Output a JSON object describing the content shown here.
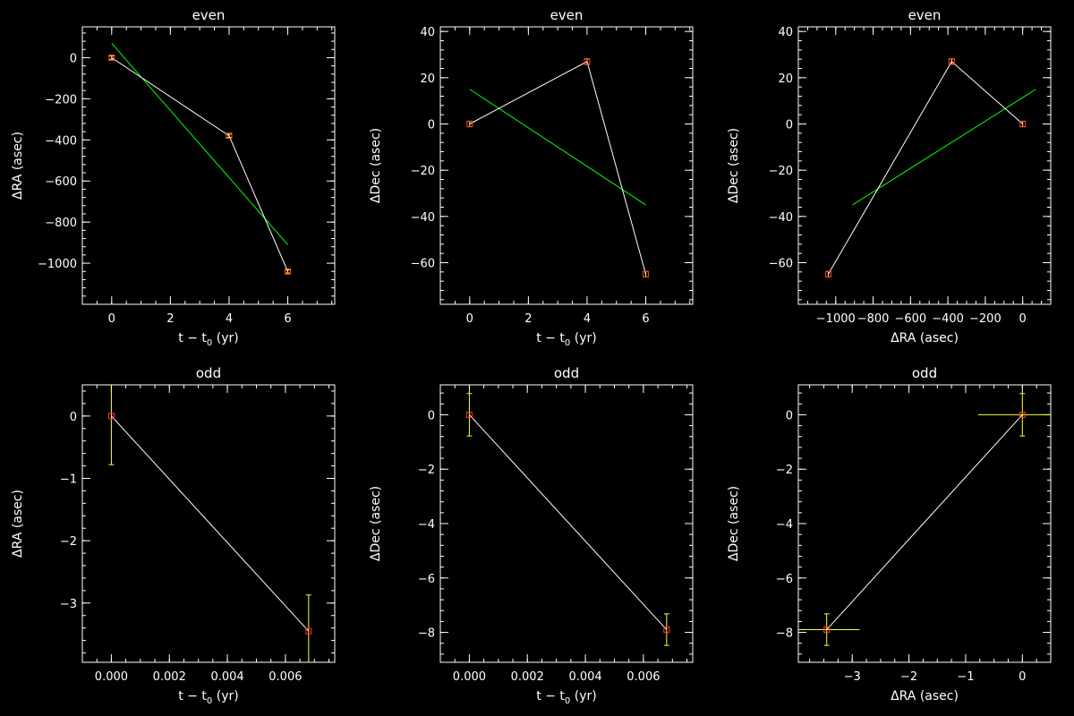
{
  "colors": {
    "background": "#000000",
    "axes": "#ffffff",
    "data_line": "#ffffff",
    "marker": "#ff3b3b",
    "errorbar": "#ffff33",
    "fit_line": "#00ff00"
  },
  "chart_data": [
    {
      "type": "line",
      "title": "even",
      "xlabel_main": "t − t",
      "xlabel_sub": "0",
      "xlabel_tail": " (yr)",
      "ylabel": "ΔRA (asec)",
      "xlim": [
        -1,
        7.6
      ],
      "ylim": [
        -1200,
        150
      ],
      "xticks": [
        0,
        2,
        4,
        6
      ],
      "xticklabels": [
        "0",
        "2",
        "4",
        "6"
      ],
      "yticks": [
        0,
        -200,
        -400,
        -600,
        -800,
        -1000
      ],
      "yticklabels": [
        "0",
        "−200",
        "−400",
        "−600",
        "−800",
        "−1000"
      ],
      "x": [
        0,
        4,
        6
      ],
      "y": [
        0,
        -380,
        -1040
      ],
      "yerr": [
        8,
        8,
        8
      ],
      "xerr": [
        0,
        0,
        0
      ],
      "fit": {
        "x": [
          0,
          6
        ],
        "y": [
          70,
          -910
        ]
      }
    },
    {
      "type": "line",
      "title": "even",
      "xlabel_main": "t − t",
      "xlabel_sub": "0",
      "xlabel_tail": " (yr)",
      "ylabel": "ΔDec (asec)",
      "xlim": [
        -1,
        7.6
      ],
      "ylim": [
        -78,
        42
      ],
      "xticks": [
        0,
        2,
        4,
        6
      ],
      "xticklabels": [
        "0",
        "2",
        "4",
        "6"
      ],
      "yticks": [
        40,
        20,
        0,
        -20,
        -40,
        -60
      ],
      "yticklabels": [
        "40",
        "20",
        "0",
        "−20",
        "−40",
        "−60"
      ],
      "x": [
        0,
        4,
        6
      ],
      "y": [
        0,
        27,
        -65
      ],
      "yerr": [
        1.2,
        1.2,
        1.2
      ],
      "xerr": [
        0,
        0,
        0
      ],
      "fit": {
        "x": [
          0,
          6
        ],
        "y": [
          15,
          -35
        ]
      }
    },
    {
      "type": "line",
      "title": "even",
      "xlabel_main": "ΔRA (asec)",
      "xlabel_sub": "",
      "xlabel_tail": "",
      "ylabel": "ΔDec (asec)",
      "xlim": [
        -1200,
        150
      ],
      "ylim": [
        -78,
        42
      ],
      "xticks": [
        -1000,
        -800,
        -600,
        -400,
        -200,
        0
      ],
      "xticklabels": [
        "−1000",
        "−800",
        "−600",
        "−400",
        "−200",
        "0"
      ],
      "yticks": [
        40,
        20,
        0,
        -20,
        -40,
        -60
      ],
      "yticklabels": [
        "40",
        "20",
        "0",
        "−20",
        "−40",
        "−60"
      ],
      "x": [
        -1040,
        -380,
        0
      ],
      "y": [
        -65,
        27,
        0
      ],
      "yerr": [
        1.2,
        1.2,
        1.2
      ],
      "xerr": [
        0,
        0,
        0
      ],
      "fit": {
        "x": [
          -910,
          70
        ],
        "y": [
          -35,
          15
        ]
      }
    },
    {
      "type": "line",
      "title": "odd",
      "xlabel_main": "t − t",
      "xlabel_sub": "0",
      "xlabel_tail": " (yr)",
      "ylabel": "ΔRA (asec)",
      "xlim": [
        -0.001,
        0.0077
      ],
      "ylim": [
        -3.95,
        0.5
      ],
      "xticks": [
        0,
        0.002,
        0.004,
        0.006
      ],
      "xticklabels": [
        "0.000",
        "0.002",
        "0.004",
        "0.006"
      ],
      "yticks": [
        0,
        -1,
        -2,
        -3
      ],
      "yticklabels": [
        "0",
        "−1",
        "−2",
        "−3"
      ],
      "x": [
        0,
        0.0068
      ],
      "y": [
        0,
        -3.45
      ],
      "yerr": [
        0.78,
        0.58
      ],
      "xerr": [
        0,
        0
      ],
      "fit": null
    },
    {
      "type": "line",
      "title": "odd",
      "xlabel_main": "t − t",
      "xlabel_sub": "0",
      "xlabel_tail": " (yr)",
      "ylabel": "ΔDec (asec)",
      "xlim": [
        -0.001,
        0.0077
      ],
      "ylim": [
        -9.1,
        1.1
      ],
      "xticks": [
        0,
        0.002,
        0.004,
        0.006
      ],
      "xticklabels": [
        "0.000",
        "0.002",
        "0.004",
        "0.006"
      ],
      "yticks": [
        0,
        -2,
        -4,
        -6,
        -8
      ],
      "yticklabels": [
        "0",
        "−2",
        "−4",
        "−6",
        "−8"
      ],
      "x": [
        0,
        0.0068
      ],
      "y": [
        0,
        -7.9
      ],
      "yerr": [
        0.78,
        0.58
      ],
      "xerr": [
        0,
        0
      ],
      "fit": null
    },
    {
      "type": "line",
      "title": "odd",
      "xlabel_main": "ΔRA (asec)",
      "xlabel_sub": "",
      "xlabel_tail": "",
      "ylabel": "ΔDec (asec)",
      "xlim": [
        -3.95,
        0.5
      ],
      "ylim": [
        -9.1,
        1.1
      ],
      "xticks": [
        -3,
        -2,
        -1,
        0
      ],
      "xticklabels": [
        "−3",
        "−2",
        "−1",
        "0"
      ],
      "yticks": [
        0,
        -2,
        -4,
        -6,
        -8
      ],
      "yticklabels": [
        "0",
        "−2",
        "−4",
        "−6",
        "−8"
      ],
      "x": [
        -3.45,
        0
      ],
      "y": [
        -7.9,
        0
      ],
      "yerr": [
        0.58,
        0.78
      ],
      "xerr": [
        0.58,
        0.78
      ],
      "fit": null
    }
  ]
}
